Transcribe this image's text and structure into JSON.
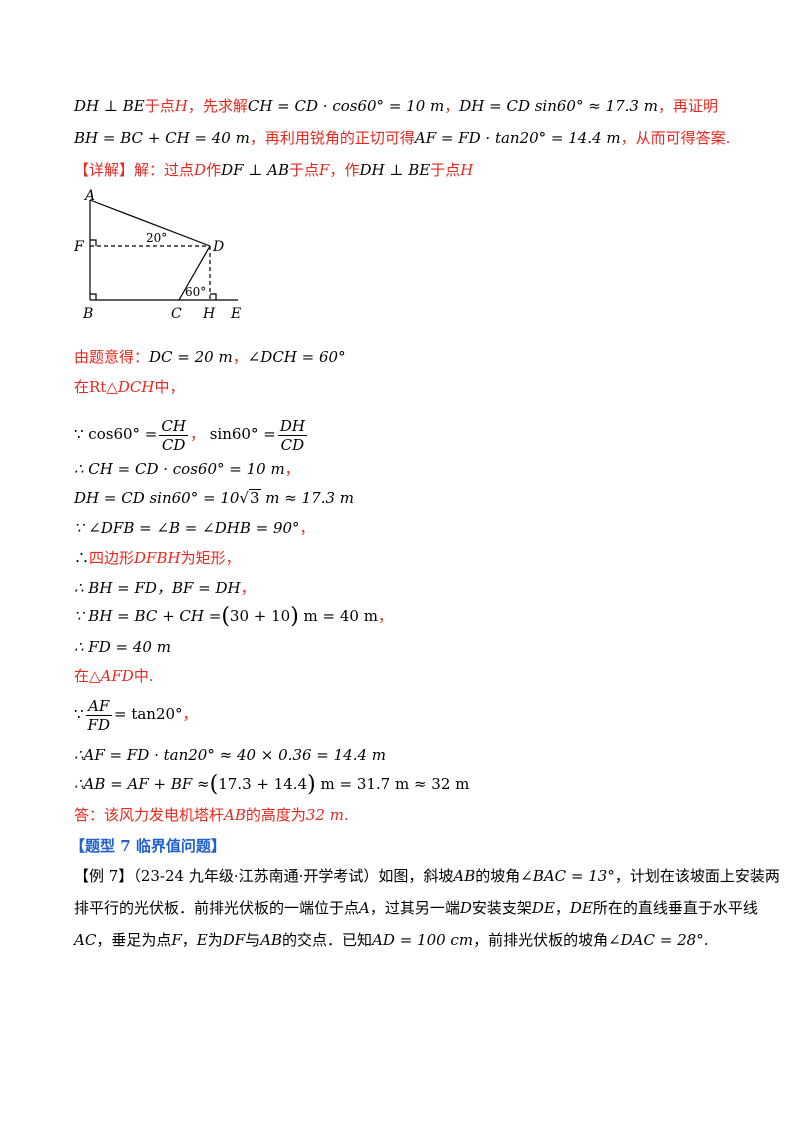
{
  "line1": {
    "a": "DH ⊥ BE",
    "b": "于点",
    "c": "H",
    "d": "，先求解",
    "e": "CH = CD · cos60° = 10 m",
    "f": "，",
    "g": "DH = CD sin60° ≈ 17.3 m",
    "h": "，再证明"
  },
  "line2": {
    "a": "BH = BC + CH = 40 m",
    "b": "，再利用锐角的正切可得",
    "c": "AF = FD · tan20° = 14.4 m",
    "d": "，从而可得答案."
  },
  "line3": {
    "a": "【详解】",
    "b": "解：过点",
    "c": "D",
    "d": "作",
    "e": "DF ⊥ AB",
    "f": "于点",
    "g": "F",
    "h": "，作",
    "i": "DH ⊥ BE",
    "j": "于点",
    "k": "H"
  },
  "figure": {
    "A": "A",
    "F": "F",
    "B": "B",
    "C": "C",
    "D": "D",
    "H": "H",
    "E": "E",
    "angle1": "20°",
    "angle2": "60°"
  },
  "s1": {
    "a": "由题意得：",
    "b": "DC = 20 m",
    "c": "，",
    "d": "∠DCH = 60°"
  },
  "s2": {
    "a": "在Rt△",
    "b": "DCH",
    "c": "中，"
  },
  "s3": {
    "a": "∵  cos60° =",
    "n1": "CH",
    "d1": "CD",
    "b": "，",
    "c": "sin60° =",
    "n2": "DH",
    "d2": "CD"
  },
  "s4": {
    "a": "∴  CH = CD · cos60° = 10 m",
    "b": "，"
  },
  "s5": {
    "a": "DH = CD sin60° = 10",
    "r": "3",
    "b": " m ≈ 17.3 m"
  },
  "s6": {
    "a": "∵  ∠DFB = ∠B = ∠DHB = 90°",
    "b": "，"
  },
  "s7": {
    "a": "∴",
    "b": "四边形",
    "c": "DFBH",
    "d": "为矩形，"
  },
  "s8": {
    "a": "∴  BH = FD，BF = DH",
    "b": "，"
  },
  "s9": {
    "a": "∵  BH = BC + CH =",
    "p1": "(",
    "b": "30 + 10",
    "p2": ")",
    "c": " m = 40 m",
    "d": "，"
  },
  "s10": {
    "a": "∴  FD = 40 m"
  },
  "s11": {
    "a": "在△",
    "b": "AFD",
    "c": "中."
  },
  "s12": {
    "a": "∵",
    "n": "AF",
    "d": "FD",
    "b": "= tan20°",
    "c": "，"
  },
  "s13": {
    "a": "∴AF = FD · tan20° ≈ 40 × 0.36 = 14.4 m"
  },
  "s14": {
    "a": "∴AB = AF + BF ≈",
    "p1": "(",
    "b": "17.3 + 14.4",
    "p2": ")",
    "c": " m = 31.7 m ≈ 32 m"
  },
  "s15": {
    "a": "答：该风力发电机塔杆",
    "b": "AB",
    "c": "的高度为",
    "d": "32 m",
    "e": "."
  },
  "s16": {
    "a": "【题型 7    临界值问题】"
  },
  "s17": {
    "a": "【例 7】（23-24 九年级·江苏南通·开学考试）如图，斜坡",
    "b": "AB",
    "c": "的坡角",
    "d": "∠BAC = 13°",
    "e": "，计划在该坡面上安装两"
  },
  "s18": {
    "a": "排平行的光伏板．前排光伏板的一端位于点",
    "b": "A",
    "c": "，过其另一端",
    "d": "D",
    "e": "安装支架",
    "f": "DE",
    "g": "，",
    "h": "DE",
    "i": "所在的直线垂直于水平线"
  },
  "s19": {
    "a": "AC",
    "b": "，垂足为点",
    "c": "F",
    "d": "，",
    "e": "E",
    "f": "为",
    "g": "DF",
    "h": "与",
    "i": "AB",
    "j": "的交点．已知",
    "k": "AD = 100 cm",
    "l": "，前排光伏板的坡角",
    "m": "∠DAC = 28°",
    "n": "."
  }
}
